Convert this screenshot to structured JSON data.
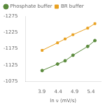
{
  "chart_data": {
    "type": "line",
    "xlabel": "ln ν (mV/s)",
    "x": [
      3.91,
      4.38,
      4.61,
      4.85,
      5.3,
      5.52
    ],
    "series": [
      {
        "name": "Phosphate buffer",
        "color": "#5a8a3c",
        "marker": "circle",
        "values": [
          -1108,
          -1128,
          -1138,
          -1155,
          -1182,
          -1200
        ]
      },
      {
        "name": "BR buffer",
        "color": "#e8a020",
        "marker": "square",
        "values": [
          -1170,
          -1193,
          -1205,
          -1218,
          -1238,
          -1252
        ]
      }
    ],
    "xlim": [
      3.4,
      5.7
    ],
    "xticks": [
      3.9,
      4.4,
      4.9,
      5.4
    ],
    "ylim": [
      -1075,
      -1275
    ],
    "yticks": [
      -1275,
      -1225,
      -1175,
      -1125,
      -1075
    ],
    "grid": false,
    "legend": "upper left"
  }
}
